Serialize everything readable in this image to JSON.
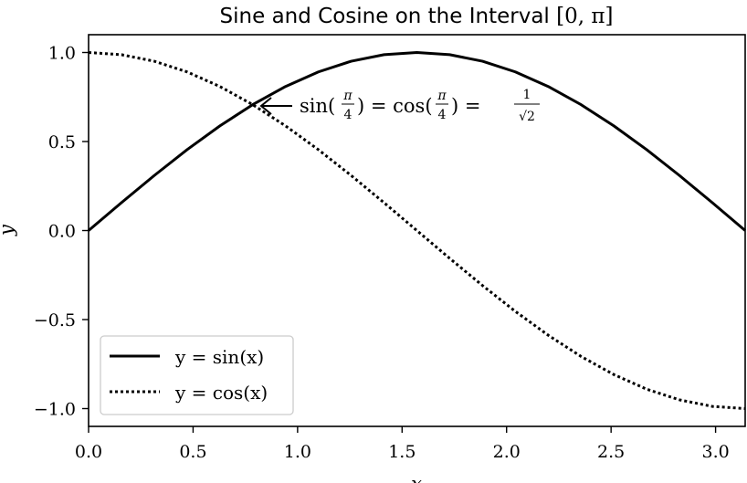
{
  "chart_data": {
    "type": "line",
    "title": "Sine and Cosine on the Interval [0, π]",
    "title_text": "Sine and Cosine on the Interval ",
    "title_math": "[0, π]",
    "xlabel": "x",
    "ylabel": "y",
    "xlim": [
      0,
      3.14159
    ],
    "ylim": [
      -1.1,
      1.1
    ],
    "xticks": [
      0.0,
      0.5,
      1.0,
      1.5,
      2.0,
      2.5,
      3.0
    ],
    "xtick_labels": [
      "0.0",
      "0.5",
      "1.0",
      "1.5",
      "2.0",
      "2.5",
      "3.0"
    ],
    "yticks": [
      -1.0,
      -0.5,
      0.0,
      0.5,
      1.0
    ],
    "ytick_labels": [
      "−1.0",
      "−0.5",
      "0.0",
      "0.5",
      "1.0"
    ],
    "grid": false,
    "legend_position": "lower-left",
    "series": [
      {
        "name": "y = sin(x)",
        "style": "solid",
        "color": "#000000",
        "x": [
          0.0,
          0.1571,
          0.3142,
          0.4712,
          0.6283,
          0.7854,
          0.9425,
          1.0996,
          1.2566,
          1.4137,
          1.5708,
          1.7279,
          1.885,
          2.042,
          2.1991,
          2.3562,
          2.5133,
          2.6704,
          2.8274,
          2.9845,
          3.1416
        ],
        "y": [
          0.0,
          0.1564,
          0.309,
          0.454,
          0.5878,
          0.7071,
          0.809,
          0.891,
          0.9511,
          0.9877,
          1.0,
          0.9877,
          0.9511,
          0.891,
          0.809,
          0.7071,
          0.5878,
          0.454,
          0.309,
          0.1564,
          0.0
        ]
      },
      {
        "name": "y = cos(x)",
        "style": "dotted",
        "color": "#000000",
        "x": [
          0.0,
          0.1571,
          0.3142,
          0.4712,
          0.6283,
          0.7854,
          0.9425,
          1.0996,
          1.2566,
          1.4137,
          1.5708,
          1.7279,
          1.885,
          2.042,
          2.1991,
          2.3562,
          2.5133,
          2.6704,
          2.8274,
          2.9845,
          3.1416
        ],
        "y": [
          1.0,
          0.9877,
          0.9511,
          0.891,
          0.809,
          0.7071,
          0.5878,
          0.454,
          0.309,
          0.1564,
          0.0,
          -0.1564,
          -0.309,
          -0.454,
          -0.5878,
          -0.7071,
          -0.809,
          -0.891,
          -0.9511,
          -0.9877,
          -1.0
        ]
      }
    ],
    "legend": {
      "sin_label": "y = sin(x)",
      "cos_label": "y = cos(x)"
    },
    "annotation": {
      "text": "sin(π/4) = cos(π/4) = 1/√2",
      "point": [
        0.7854,
        0.7071
      ],
      "part_sin": "sin(",
      "part_cos": ") = cos(",
      "part_eq": ") =",
      "pi": "π",
      "four": "4",
      "one": "1",
      "sqrt2": "√2"
    }
  }
}
